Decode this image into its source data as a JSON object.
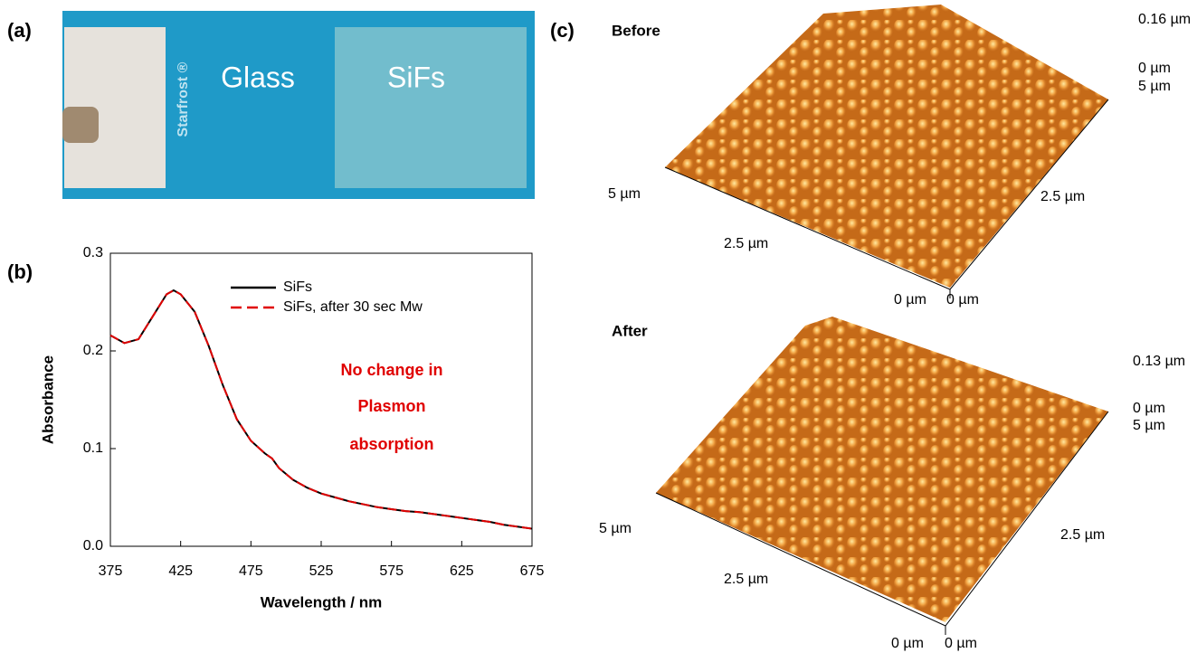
{
  "panel_labels": [
    "(a)",
    "(b)",
    "(c)"
  ],
  "photo": {
    "brand": "Starfrost ®",
    "left_label": "Glass",
    "right_label": "SiFs"
  },
  "chart_data": {
    "type": "line",
    "xlabel": "Wavelength / nm",
    "ylabel": "Absorbance",
    "annotations": [
      "No change in",
      "Plasmon",
      "absorption"
    ],
    "x": [
      375,
      385,
      395,
      405,
      415,
      420,
      425,
      435,
      445,
      455,
      465,
      475,
      485,
      490,
      495,
      505,
      515,
      525,
      535,
      545,
      555,
      565,
      575,
      585,
      595,
      605,
      615,
      625,
      635,
      645,
      655,
      665,
      675
    ],
    "series": [
      {
        "name": "SiFs",
        "color": "#000000",
        "dash": false,
        "values": [
          0.216,
          0.208,
          0.212,
          0.235,
          0.258,
          0.262,
          0.258,
          0.24,
          0.205,
          0.165,
          0.13,
          0.108,
          0.095,
          0.09,
          0.08,
          0.068,
          0.06,
          0.054,
          0.05,
          0.046,
          0.043,
          0.04,
          0.038,
          0.036,
          0.035,
          0.033,
          0.031,
          0.029,
          0.027,
          0.025,
          0.022,
          0.02,
          0.018
        ]
      },
      {
        "name": "SiFs, after 30 sec Mw",
        "color": "#e00000",
        "dash": true,
        "values": [
          0.216,
          0.208,
          0.212,
          0.235,
          0.258,
          0.262,
          0.258,
          0.24,
          0.205,
          0.165,
          0.13,
          0.108,
          0.095,
          0.09,
          0.08,
          0.068,
          0.06,
          0.054,
          0.05,
          0.046,
          0.043,
          0.04,
          0.038,
          0.036,
          0.035,
          0.033,
          0.031,
          0.029,
          0.027,
          0.025,
          0.022,
          0.02,
          0.018
        ]
      }
    ],
    "xlim": [
      375,
      675
    ],
    "xticks": [
      375,
      425,
      475,
      525,
      575,
      625,
      675
    ],
    "ylim": [
      0,
      0.3
    ],
    "yticks": [
      {
        "value": 0,
        "label": "0.0"
      },
      0.1,
      0.2,
      0.3
    ],
    "grid": false
  },
  "afm": [
    {
      "title": "Before",
      "height": "0.16 µm",
      "z0": "0 µm",
      "y_end": "5 µm",
      "x_end": "5 µm",
      "x_mid": "2.5 µm",
      "y_mid": "2.5 µm",
      "x_origin": "0 µm",
      "y_origin": "0 µm"
    },
    {
      "title": "After",
      "height": "0.13 µm",
      "z0": "0 µm",
      "y_end": "5 µm",
      "x_end": "5 µm",
      "x_mid": "2.5 µm",
      "y_mid": "2.5 µm",
      "x_origin": "0 µm",
      "y_origin": "0 µm"
    }
  ]
}
